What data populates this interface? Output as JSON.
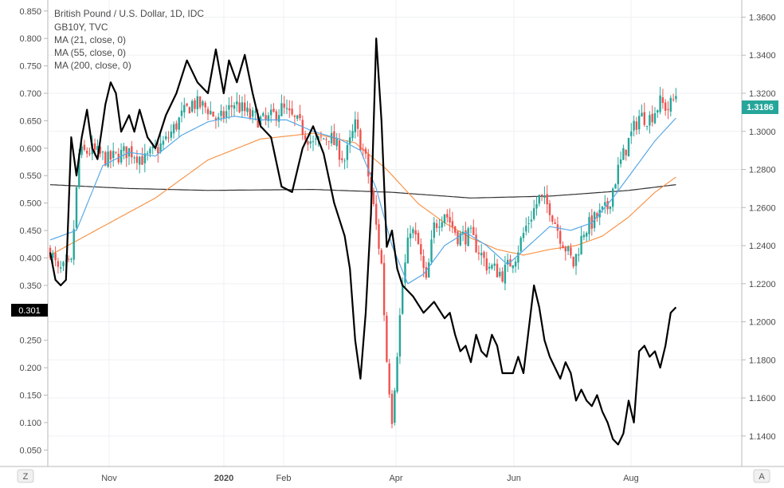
{
  "legend": {
    "title": "British Pound / U.S. Dollar, 1D, IDC",
    "lines": [
      "GB10Y, TVC",
      "MA (21, close, 0)",
      "MA (55, close, 0)",
      "MA (200, close, 0)"
    ]
  },
  "controls": {
    "left_label": "Z",
    "right_label": "A"
  },
  "chart_data": {
    "type": "candlestick+line",
    "x_labels": [
      "Nov",
      "2020",
      "Feb",
      "Apr",
      "Jun",
      "Aug"
    ],
    "left_axis": {
      "ticks": [
        "0.850",
        "0.800",
        "0.750",
        "0.700",
        "0.650",
        "0.600",
        "0.550",
        "0.500",
        "0.450",
        "0.400",
        "0.350",
        "0.300",
        "0.250",
        "0.200",
        "0.150",
        "0.100",
        "0.050"
      ],
      "range": [
        0.02,
        0.87
      ],
      "last_value_label": "0.301"
    },
    "right_axis": {
      "ticks": [
        "1.3600",
        "1.3400",
        "1.3200",
        "1.3000",
        "1.2800",
        "1.2600",
        "1.2400",
        "1.2200",
        "1.2000",
        "1.1800",
        "1.1600",
        "1.1400"
      ],
      "range": [
        1.124,
        1.369
      ],
      "last_value_label": "1.3186"
    },
    "colors": {
      "up": "#26a69a",
      "down": "#ef5350",
      "gb10y": "#000000",
      "ma21": "#5aa9e6",
      "ma55": "#f7954a",
      "ma200": "#333333",
      "price_tag": "#26a69a",
      "gb10y_tag": "#000000"
    },
    "gbpusd_close_anchors": [
      [
        0,
        1.238
      ],
      [
        3,
        1.226
      ],
      [
        8,
        1.23
      ],
      [
        11,
        1.288
      ],
      [
        16,
        1.29
      ],
      [
        22,
        1.285
      ],
      [
        30,
        1.29
      ],
      [
        36,
        1.285
      ],
      [
        44,
        1.295
      ],
      [
        50,
        1.308
      ],
      [
        54,
        1.315
      ],
      [
        60,
        1.312
      ],
      [
        64,
        1.305
      ],
      [
        70,
        1.315
      ],
      [
        76,
        1.308
      ],
      [
        82,
        1.305
      ],
      [
        88,
        1.312
      ],
      [
        95,
        1.303
      ],
      [
        100,
        1.293
      ],
      [
        106,
        1.298
      ],
      [
        112,
        1.285
      ],
      [
        116,
        1.303
      ],
      [
        120,
        1.285
      ],
      [
        123,
        1.26
      ],
      [
        126,
        1.23
      ],
      [
        128,
        1.18
      ],
      [
        130,
        1.15
      ],
      [
        132,
        1.185
      ],
      [
        134,
        1.22
      ],
      [
        137,
        1.25
      ],
      [
        140,
        1.24
      ],
      [
        143,
        1.22
      ],
      [
        146,
        1.25
      ],
      [
        150,
        1.258
      ],
      [
        155,
        1.245
      ],
      [
        160,
        1.245
      ],
      [
        166,
        1.23
      ],
      [
        172,
        1.225
      ],
      [
        177,
        1.235
      ],
      [
        181,
        1.25
      ],
      [
        186,
        1.265
      ],
      [
        190,
        1.26
      ],
      [
        194,
        1.245
      ],
      [
        199,
        1.23
      ],
      [
        203,
        1.248
      ],
      [
        208,
        1.255
      ],
      [
        212,
        1.26
      ],
      [
        216,
        1.28
      ],
      [
        220,
        1.295
      ],
      [
        224,
        1.308
      ],
      [
        228,
        1.307
      ],
      [
        232,
        1.315
      ],
      [
        235,
        1.312
      ],
      [
        238,
        1.3186
      ]
    ],
    "gb10y_anchors": [
      [
        0,
        0.41
      ],
      [
        2,
        0.36
      ],
      [
        4,
        0.35
      ],
      [
        6,
        0.36
      ],
      [
        8,
        0.62
      ],
      [
        10,
        0.55
      ],
      [
        12,
        0.62
      ],
      [
        14,
        0.67
      ],
      [
        16,
        0.6
      ],
      [
        18,
        0.58
      ],
      [
        21,
        0.68
      ],
      [
        23,
        0.72
      ],
      [
        25,
        0.7
      ],
      [
        27,
        0.63
      ],
      [
        30,
        0.66
      ],
      [
        32,
        0.63
      ],
      [
        34,
        0.67
      ],
      [
        37,
        0.62
      ],
      [
        40,
        0.6
      ],
      [
        44,
        0.66
      ],
      [
        48,
        0.7
      ],
      [
        52,
        0.76
      ],
      [
        56,
        0.72
      ],
      [
        60,
        0.7
      ],
      [
        63,
        0.78
      ],
      [
        66,
        0.7
      ],
      [
        68,
        0.76
      ],
      [
        71,
        0.72
      ],
      [
        74,
        0.77
      ],
      [
        77,
        0.7
      ],
      [
        80,
        0.64
      ],
      [
        84,
        0.62
      ],
      [
        88,
        0.53
      ],
      [
        92,
        0.52
      ],
      [
        96,
        0.6
      ],
      [
        100,
        0.64
      ],
      [
        104,
        0.59
      ],
      [
        108,
        0.5
      ],
      [
        112,
        0.44
      ],
      [
        114,
        0.38
      ],
      [
        116,
        0.25
      ],
      [
        118,
        0.18
      ],
      [
        120,
        0.3
      ],
      [
        122,
        0.48
      ],
      [
        124,
        0.8
      ],
      [
        126,
        0.65
      ],
      [
        128,
        0.42
      ],
      [
        130,
        0.45
      ],
      [
        132,
        0.38
      ],
      [
        134,
        0.35
      ],
      [
        138,
        0.33
      ],
      [
        142,
        0.3
      ],
      [
        146,
        0.32
      ],
      [
        150,
        0.29
      ],
      [
        152,
        0.3
      ],
      [
        154,
        0.26
      ],
      [
        156,
        0.23
      ],
      [
        158,
        0.24
      ],
      [
        160,
        0.21
      ],
      [
        162,
        0.26
      ],
      [
        164,
        0.23
      ],
      [
        166,
        0.22
      ],
      [
        168,
        0.26
      ],
      [
        170,
        0.24
      ],
      [
        172,
        0.19
      ],
      [
        176,
        0.19
      ],
      [
        178,
        0.22
      ],
      [
        180,
        0.19
      ],
      [
        184,
        0.35
      ],
      [
        186,
        0.31
      ],
      [
        188,
        0.25
      ],
      [
        190,
        0.22
      ],
      [
        192,
        0.2
      ],
      [
        194,
        0.18
      ],
      [
        196,
        0.21
      ],
      [
        198,
        0.19
      ],
      [
        200,
        0.14
      ],
      [
        202,
        0.16
      ],
      [
        204,
        0.14
      ],
      [
        206,
        0.13
      ],
      [
        208,
        0.15
      ],
      [
        210,
        0.12
      ],
      [
        212,
        0.1
      ],
      [
        214,
        0.07
      ],
      [
        216,
        0.06
      ],
      [
        218,
        0.08
      ],
      [
        220,
        0.14
      ],
      [
        222,
        0.1
      ],
      [
        224,
        0.23
      ],
      [
        226,
        0.24
      ],
      [
        228,
        0.22
      ],
      [
        230,
        0.23
      ],
      [
        232,
        0.2
      ],
      [
        234,
        0.24
      ],
      [
        236,
        0.3
      ],
      [
        238,
        0.31
      ]
    ],
    "ma21_anchors": [
      [
        0,
        1.243
      ],
      [
        10,
        1.248
      ],
      [
        20,
        1.282
      ],
      [
        30,
        1.289
      ],
      [
        40,
        1.287
      ],
      [
        50,
        1.298
      ],
      [
        60,
        1.305
      ],
      [
        70,
        1.308
      ],
      [
        80,
        1.306
      ],
      [
        90,
        1.306
      ],
      [
        100,
        1.3
      ],
      [
        110,
        1.296
      ],
      [
        118,
        1.29
      ],
      [
        124,
        1.27
      ],
      [
        130,
        1.24
      ],
      [
        136,
        1.22
      ],
      [
        142,
        1.225
      ],
      [
        150,
        1.24
      ],
      [
        158,
        1.247
      ],
      [
        166,
        1.24
      ],
      [
        174,
        1.23
      ],
      [
        182,
        1.24
      ],
      [
        190,
        1.25
      ],
      [
        198,
        1.248
      ],
      [
        206,
        1.252
      ],
      [
        214,
        1.265
      ],
      [
        222,
        1.28
      ],
      [
        230,
        1.295
      ],
      [
        238,
        1.307
      ]
    ],
    "ma55_anchors": [
      [
        0,
        1.235
      ],
      [
        20,
        1.25
      ],
      [
        40,
        1.265
      ],
      [
        60,
        1.285
      ],
      [
        80,
        1.296
      ],
      [
        100,
        1.299
      ],
      [
        116,
        1.294
      ],
      [
        128,
        1.28
      ],
      [
        140,
        1.262
      ],
      [
        150,
        1.252
      ],
      [
        160,
        1.244
      ],
      [
        170,
        1.238
      ],
      [
        180,
        1.235
      ],
      [
        190,
        1.238
      ],
      [
        200,
        1.24
      ],
      [
        210,
        1.245
      ],
      [
        220,
        1.255
      ],
      [
        230,
        1.268
      ],
      [
        238,
        1.276
      ]
    ],
    "ma200_anchors": [
      [
        0,
        1.272
      ],
      [
        30,
        1.27
      ],
      [
        60,
        1.269
      ],
      [
        100,
        1.2695
      ],
      [
        130,
        1.268
      ],
      [
        160,
        1.265
      ],
      [
        190,
        1.266
      ],
      [
        220,
        1.269
      ],
      [
        238,
        1.272
      ]
    ]
  }
}
